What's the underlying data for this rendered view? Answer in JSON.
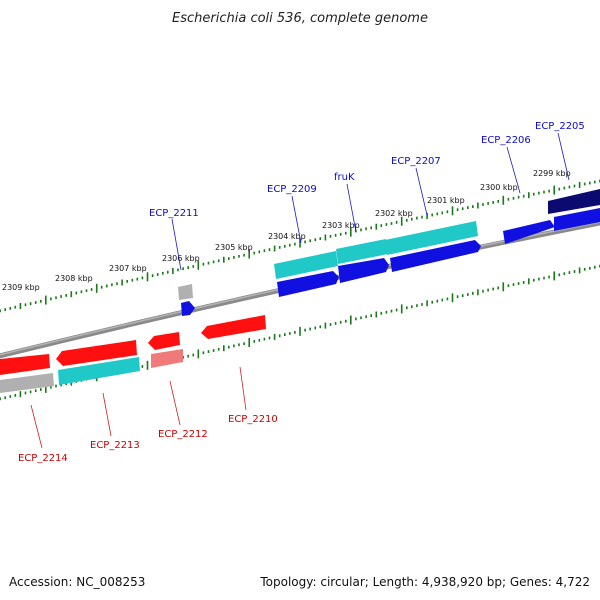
{
  "title": "Escherichia coli 536, complete genome",
  "footer": {
    "accession": "Accession: NC_008253",
    "summary": "Topology: circular; Length: 4,938,920 bp; Genes: 4,722"
  },
  "colors": {
    "backbone": "#8a8a8a",
    "tick": "#1a7a1a",
    "forward_gene": "#1010e0",
    "forward_gene_dark": "#0a0a70",
    "reverse_gene": "#ff1010",
    "reverse_gene_light": "#f07a7a",
    "cyan_gene": "#20c8c8",
    "gray_gene": "#b0b0b0"
  },
  "scale_labels": [
    "2299 kbp",
    "2300 kbp",
    "2301 kbp",
    "2302 kbp",
    "2303 kbp",
    "2304 kbp",
    "2305 kbp",
    "2306 kbp",
    "2307 kbp",
    "2308 kbp",
    "2309 kbp"
  ],
  "gene_labels": {
    "forward": [
      "ECP_2205",
      "ECP_2206",
      "ECP_2207",
      "fruK",
      "ECP_2209",
      "ECP_2211"
    ],
    "reverse": [
      "ECP_2210",
      "ECP_2212",
      "ECP_2213",
      "ECP_2214"
    ]
  }
}
